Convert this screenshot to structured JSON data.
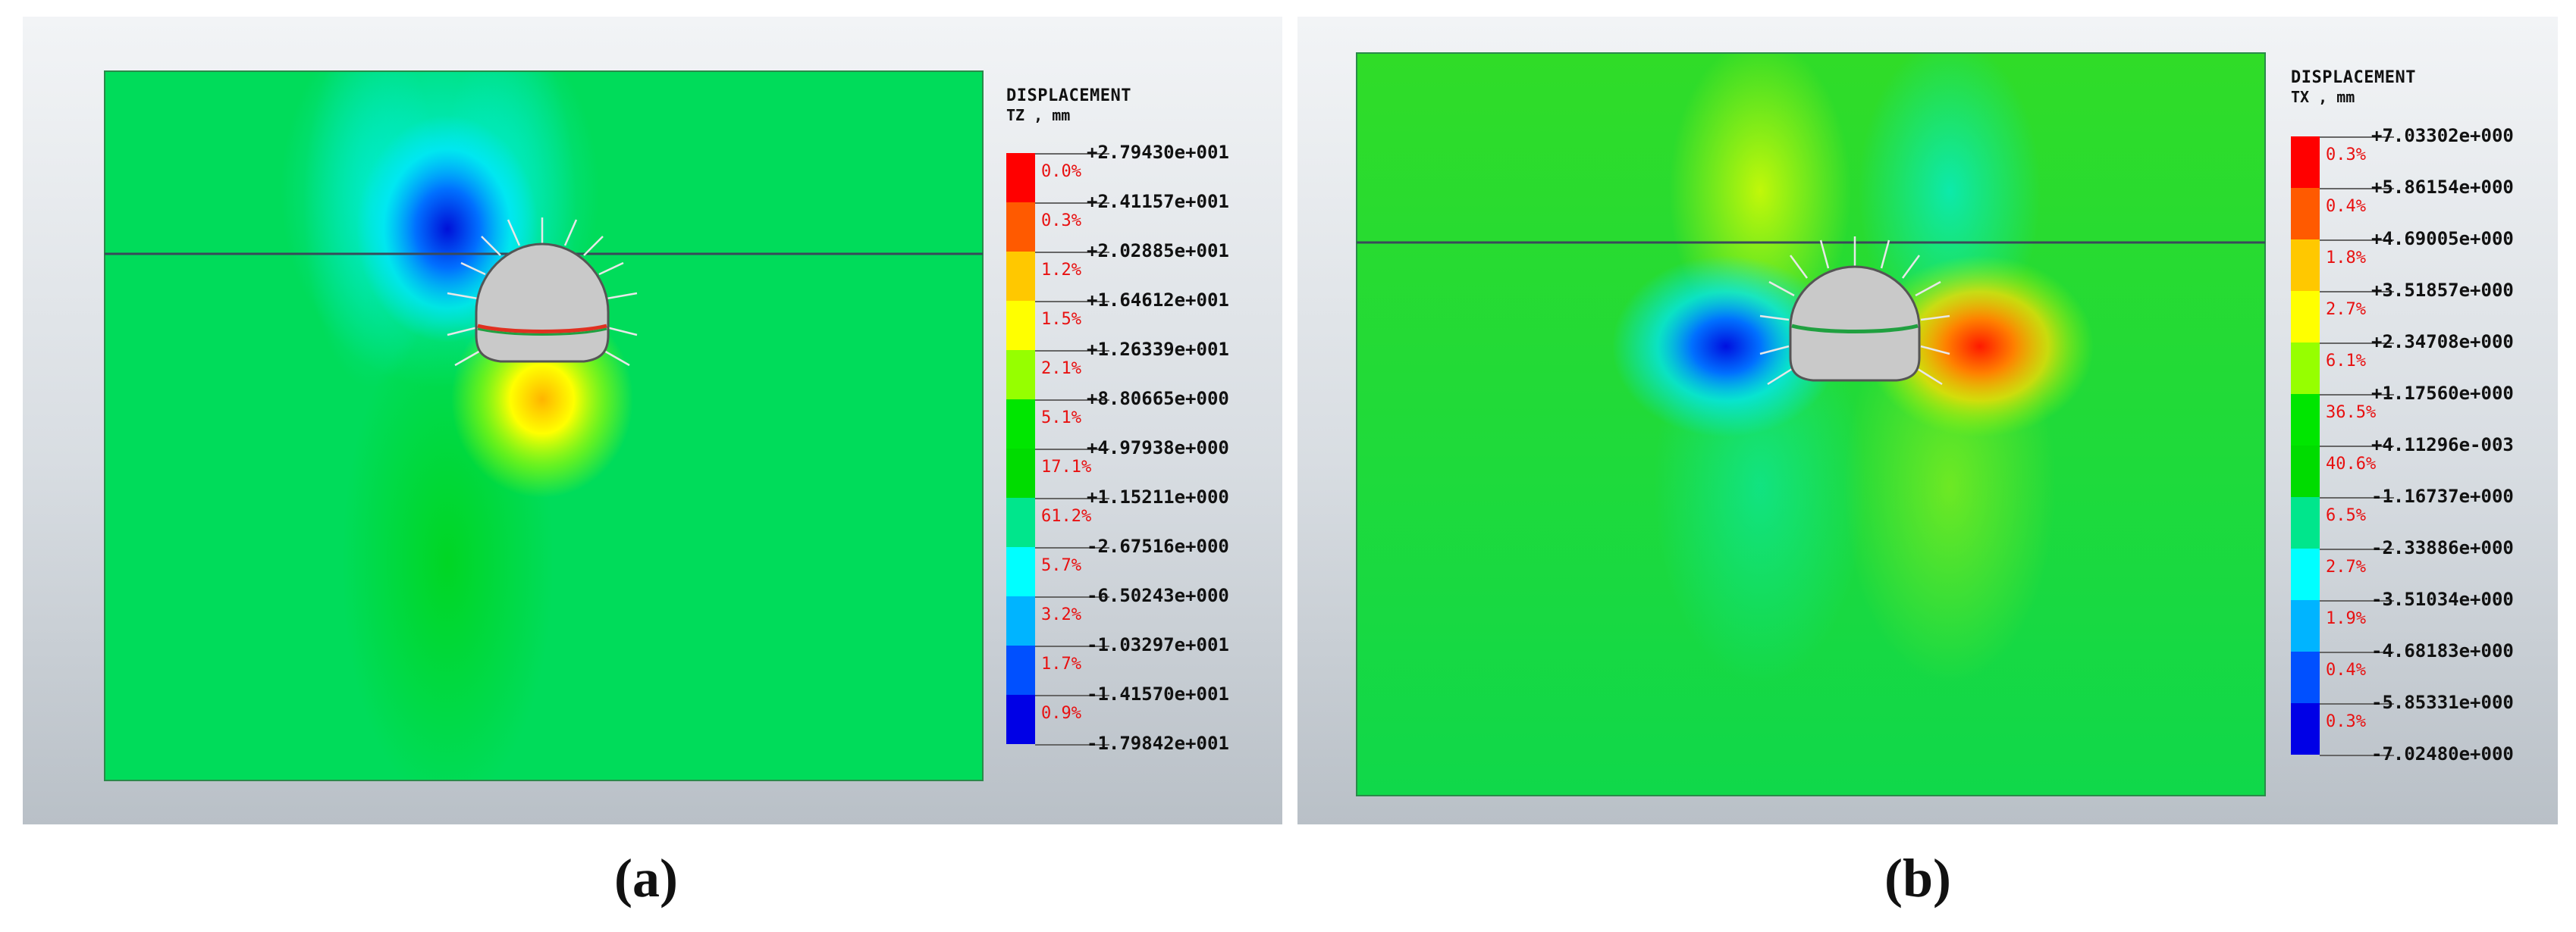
{
  "panels": [
    {
      "id": "a",
      "caption": "(a)",
      "legend": {
        "title": "DISPLACEMENT",
        "component": "TZ , mm",
        "values": [
          "+2.79430e+001",
          "+2.41157e+001",
          "+2.02885e+001",
          "+1.64612e+001",
          "+1.26339e+001",
          "+8.80665e+000",
          "+4.97938e+000",
          "+1.15211e+000",
          "-2.67516e+000",
          "-6.50243e+000",
          "-1.03297e+001",
          "-1.41570e+001",
          "-1.79842e+001"
        ],
        "percents": [
          "0.0%",
          "0.3%",
          "1.2%",
          "1.5%",
          "2.1%",
          "5.1%",
          "17.1%",
          "61.2%",
          "5.7%",
          "3.2%",
          "1.7%",
          "0.9%"
        ],
        "colors": [
          "#ff0000",
          "#ff5a00",
          "#ffc800",
          "#ffff00",
          "#96ff00",
          "#00e600",
          "#00dc00",
          "#00e68c",
          "#00ffff",
          "#00b4ff",
          "#0050ff",
          "#0000e6"
        ]
      }
    },
    {
      "id": "b",
      "caption": "(b)",
      "legend": {
        "title": "DISPLACEMENT",
        "component": "TX , mm",
        "values": [
          "+7.03302e+000",
          "+5.86154e+000",
          "+4.69005e+000",
          "+3.51857e+000",
          "+2.34708e+000",
          "+1.17560e+000",
          "+4.11296e-003",
          "-1.16737e+000",
          "-2.33886e+000",
          "-3.51034e+000",
          "-4.68183e+000",
          "-5.85331e+000",
          "-7.02480e+000"
        ],
        "percents": [
          "0.3%",
          "0.4%",
          "1.8%",
          "2.7%",
          "6.1%",
          "36.5%",
          "40.6%",
          "6.5%",
          "2.7%",
          "1.9%",
          "0.4%",
          "0.3%"
        ],
        "colors": [
          "#ff0000",
          "#ff5a00",
          "#ffc800",
          "#ffff00",
          "#96ff00",
          "#00e600",
          "#00dc00",
          "#00e68c",
          "#00ffff",
          "#00b4ff",
          "#0050ff",
          "#0000e6"
        ]
      }
    }
  ]
}
